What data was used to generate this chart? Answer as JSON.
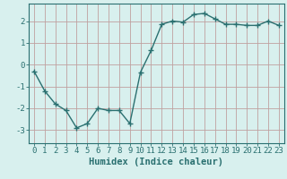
{
  "x": [
    0,
    1,
    2,
    3,
    4,
    5,
    6,
    7,
    8,
    9,
    10,
    11,
    12,
    13,
    14,
    15,
    16,
    17,
    18,
    19,
    20,
    21,
    22,
    23
  ],
  "y": [
    -0.3,
    -1.2,
    -1.8,
    -2.1,
    -2.9,
    -2.7,
    -2.0,
    -2.1,
    -2.1,
    -2.7,
    -0.35,
    0.65,
    1.85,
    2.0,
    1.95,
    2.3,
    2.35,
    2.1,
    1.85,
    1.85,
    1.8,
    1.8,
    2.0,
    1.8
  ],
  "line_color": "#2a7070",
  "marker": "+",
  "marker_size": 4,
  "line_width": 1.0,
  "bg_color": "#d8f0ee",
  "grid_color": "#c0a0a0",
  "xlabel": "Humidex (Indice chaleur)",
  "xlim": [
    -0.5,
    23.5
  ],
  "ylim": [
    -3.6,
    2.8
  ],
  "xticks": [
    0,
    1,
    2,
    3,
    4,
    5,
    6,
    7,
    8,
    9,
    10,
    11,
    12,
    13,
    14,
    15,
    16,
    17,
    18,
    19,
    20,
    21,
    22,
    23
  ],
  "yticks": [
    -3,
    -2,
    -1,
    0,
    1,
    2
  ],
  "xlabel_fontsize": 7.5,
  "tick_fontsize": 6.5,
  "spine_color": "#2a7070"
}
